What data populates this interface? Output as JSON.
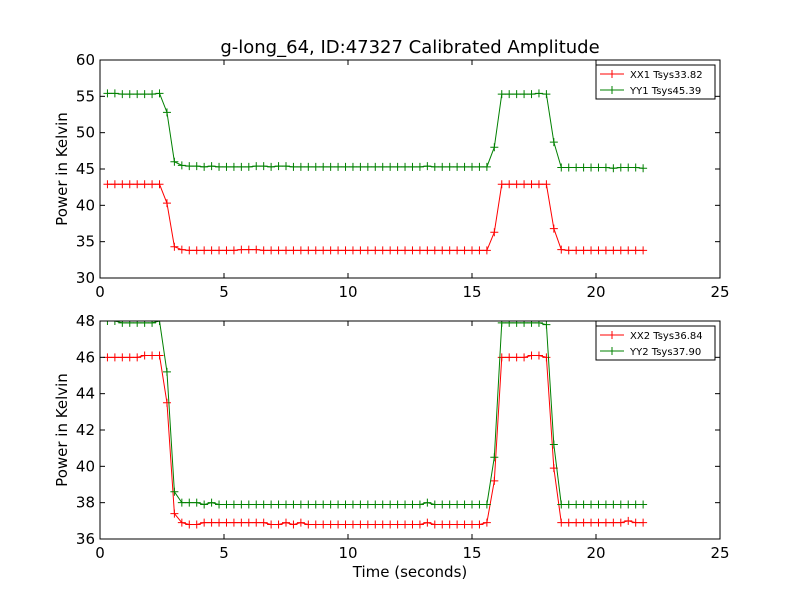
{
  "chart_data": [
    {
      "type": "line",
      "title": "g-long_64, ID:47327 Calibrated Amplitude",
      "xlabel": "",
      "ylabel": "Power in Kelvin",
      "xlim": [
        0,
        25
      ],
      "ylim": [
        30,
        60
      ],
      "xticks": [
        0,
        5,
        10,
        15,
        20,
        25
      ],
      "yticks": [
        30,
        35,
        40,
        45,
        50,
        55,
        60
      ],
      "grid": false,
      "legend_position": "top-right",
      "series": [
        {
          "name": "XX1 Tsys33.82",
          "color": "#ff0000",
          "x": [
            0.3,
            0.6,
            0.9,
            1.2,
            1.5,
            1.8,
            2.1,
            2.4,
            2.7,
            3.0,
            3.3,
            3.6,
            3.9,
            4.2,
            4.5,
            4.8,
            5.1,
            5.4,
            5.7,
            6.0,
            6.3,
            6.6,
            6.9,
            7.2,
            7.5,
            7.8,
            8.1,
            8.4,
            8.7,
            9.0,
            9.3,
            9.6,
            9.9,
            10.2,
            10.5,
            10.8,
            11.1,
            11.4,
            11.7,
            12.0,
            12.3,
            12.6,
            12.9,
            13.2,
            13.5,
            13.8,
            14.1,
            14.4,
            14.7,
            15.0,
            15.3,
            15.6,
            15.9,
            16.2,
            16.5,
            16.8,
            17.1,
            17.4,
            17.7,
            18.0,
            18.3,
            18.6,
            18.9,
            19.2,
            19.5,
            19.8,
            20.1,
            20.4,
            20.7,
            21.0,
            21.3,
            21.6,
            21.9
          ],
          "values": [
            42.9,
            42.9,
            42.9,
            42.9,
            42.9,
            42.9,
            42.9,
            42.9,
            40.3,
            34.3,
            33.9,
            33.8,
            33.8,
            33.8,
            33.8,
            33.8,
            33.8,
            33.8,
            33.9,
            33.9,
            33.9,
            33.8,
            33.8,
            33.8,
            33.8,
            33.8,
            33.8,
            33.8,
            33.8,
            33.8,
            33.8,
            33.8,
            33.8,
            33.8,
            33.8,
            33.8,
            33.8,
            33.8,
            33.8,
            33.8,
            33.8,
            33.8,
            33.8,
            33.8,
            33.8,
            33.8,
            33.8,
            33.8,
            33.8,
            33.8,
            33.8,
            33.8,
            36.3,
            42.9,
            42.9,
            42.9,
            42.9,
            42.9,
            42.9,
            42.9,
            36.8,
            33.9,
            33.8,
            33.8,
            33.8,
            33.8,
            33.8,
            33.8,
            33.8,
            33.8,
            33.8,
            33.8,
            33.8
          ]
        },
        {
          "name": "YY1 Tsys45.39",
          "color": "#008000",
          "x": [
            0.3,
            0.6,
            0.9,
            1.2,
            1.5,
            1.8,
            2.1,
            2.4,
            2.7,
            3.0,
            3.3,
            3.6,
            3.9,
            4.2,
            4.5,
            4.8,
            5.1,
            5.4,
            5.7,
            6.0,
            6.3,
            6.6,
            6.9,
            7.2,
            7.5,
            7.8,
            8.1,
            8.4,
            8.7,
            9.0,
            9.3,
            9.6,
            9.9,
            10.2,
            10.5,
            10.8,
            11.1,
            11.4,
            11.7,
            12.0,
            12.3,
            12.6,
            12.9,
            13.2,
            13.5,
            13.8,
            14.1,
            14.4,
            14.7,
            15.0,
            15.3,
            15.6,
            15.9,
            16.2,
            16.5,
            16.8,
            17.1,
            17.4,
            17.7,
            18.0,
            18.3,
            18.6,
            18.9,
            19.2,
            19.5,
            19.8,
            20.1,
            20.4,
            20.7,
            21.0,
            21.3,
            21.6,
            21.9
          ],
          "values": [
            55.4,
            55.4,
            55.3,
            55.3,
            55.3,
            55.3,
            55.3,
            55.4,
            52.8,
            46.0,
            45.5,
            45.4,
            45.4,
            45.3,
            45.4,
            45.3,
            45.3,
            45.3,
            45.3,
            45.3,
            45.4,
            45.4,
            45.3,
            45.4,
            45.4,
            45.3,
            45.3,
            45.3,
            45.3,
            45.3,
            45.3,
            45.3,
            45.3,
            45.3,
            45.3,
            45.3,
            45.3,
            45.3,
            45.3,
            45.3,
            45.3,
            45.3,
            45.3,
            45.4,
            45.3,
            45.3,
            45.3,
            45.3,
            45.3,
            45.3,
            45.3,
            45.3,
            48.0,
            55.3,
            55.3,
            55.3,
            55.3,
            55.3,
            55.4,
            55.3,
            48.7,
            45.2,
            45.2,
            45.2,
            45.2,
            45.2,
            45.2,
            45.2,
            45.1,
            45.2,
            45.2,
            45.2,
            45.1
          ]
        }
      ]
    },
    {
      "type": "line",
      "title": "",
      "xlabel": "Time (seconds)",
      "ylabel": "Power in Kelvin",
      "xlim": [
        0,
        25
      ],
      "ylim": [
        36,
        48
      ],
      "xticks": [
        0,
        5,
        10,
        15,
        20,
        25
      ],
      "yticks": [
        36,
        38,
        40,
        42,
        44,
        46,
        48
      ],
      "grid": false,
      "legend_position": "top-right",
      "series": [
        {
          "name": "XX2 Tsys36.84",
          "color": "#ff0000",
          "x": [
            0.3,
            0.6,
            0.9,
            1.2,
            1.5,
            1.8,
            2.1,
            2.4,
            2.7,
            3.0,
            3.3,
            3.6,
            3.9,
            4.2,
            4.5,
            4.8,
            5.1,
            5.4,
            5.7,
            6.0,
            6.3,
            6.6,
            6.9,
            7.2,
            7.5,
            7.8,
            8.1,
            8.4,
            8.7,
            9.0,
            9.3,
            9.6,
            9.9,
            10.2,
            10.5,
            10.8,
            11.1,
            11.4,
            11.7,
            12.0,
            12.3,
            12.6,
            12.9,
            13.2,
            13.5,
            13.8,
            14.1,
            14.4,
            14.7,
            15.0,
            15.3,
            15.6,
            15.9,
            16.2,
            16.5,
            16.8,
            17.1,
            17.4,
            17.7,
            18.0,
            18.3,
            18.6,
            18.9,
            19.2,
            19.5,
            19.8,
            20.1,
            20.4,
            20.7,
            21.0,
            21.3,
            21.6,
            21.9
          ],
          "values": [
            46.0,
            46.0,
            46.0,
            46.0,
            46.0,
            46.1,
            46.1,
            46.1,
            43.5,
            37.4,
            36.9,
            36.8,
            36.8,
            36.9,
            36.9,
            36.9,
            36.9,
            36.9,
            36.9,
            36.9,
            36.9,
            36.9,
            36.8,
            36.8,
            36.9,
            36.8,
            36.9,
            36.8,
            36.8,
            36.8,
            36.8,
            36.8,
            36.8,
            36.8,
            36.8,
            36.8,
            36.8,
            36.8,
            36.8,
            36.8,
            36.8,
            36.8,
            36.8,
            36.9,
            36.8,
            36.8,
            36.8,
            36.8,
            36.8,
            36.8,
            36.8,
            36.9,
            39.2,
            46.0,
            46.0,
            46.0,
            46.0,
            46.1,
            46.1,
            46.0,
            39.9,
            36.9,
            36.9,
            36.9,
            36.9,
            36.9,
            36.9,
            36.9,
            36.9,
            36.9,
            37.0,
            36.9,
            36.9
          ]
        },
        {
          "name": "YY2 Tsys37.90",
          "color": "#008000",
          "x": [
            0.3,
            0.6,
            0.9,
            1.2,
            1.5,
            1.8,
            2.1,
            2.4,
            2.7,
            3.0,
            3.3,
            3.6,
            3.9,
            4.2,
            4.5,
            4.8,
            5.1,
            5.4,
            5.7,
            6.0,
            6.3,
            6.6,
            6.9,
            7.2,
            7.5,
            7.8,
            8.1,
            8.4,
            8.7,
            9.0,
            9.3,
            9.6,
            9.9,
            10.2,
            10.5,
            10.8,
            11.1,
            11.4,
            11.7,
            12.0,
            12.3,
            12.6,
            12.9,
            13.2,
            13.5,
            13.8,
            14.1,
            14.4,
            14.7,
            15.0,
            15.3,
            15.6,
            15.9,
            16.2,
            16.5,
            16.8,
            17.1,
            17.4,
            17.7,
            18.0,
            18.3,
            18.6,
            18.9,
            19.2,
            19.5,
            19.8,
            20.1,
            20.4,
            20.7,
            21.0,
            21.3,
            21.6,
            21.9
          ],
          "values": [
            48.0,
            48.0,
            47.9,
            47.9,
            47.9,
            47.9,
            47.9,
            48.0,
            45.2,
            38.6,
            38.0,
            38.0,
            38.0,
            37.9,
            38.0,
            37.9,
            37.9,
            37.9,
            37.9,
            37.9,
            37.9,
            37.9,
            37.9,
            37.9,
            37.9,
            37.9,
            37.9,
            37.9,
            37.9,
            37.9,
            37.9,
            37.9,
            37.9,
            37.9,
            37.9,
            37.9,
            37.9,
            37.9,
            37.9,
            37.9,
            37.9,
            37.9,
            37.9,
            38.0,
            37.9,
            37.9,
            37.9,
            37.9,
            37.9,
            37.9,
            37.9,
            37.9,
            40.5,
            47.9,
            47.9,
            47.9,
            47.9,
            47.9,
            47.9,
            47.8,
            41.2,
            37.9,
            37.9,
            37.9,
            37.9,
            37.9,
            37.9,
            37.9,
            37.9,
            37.9,
            37.9,
            37.9,
            37.9
          ]
        }
      ]
    }
  ]
}
